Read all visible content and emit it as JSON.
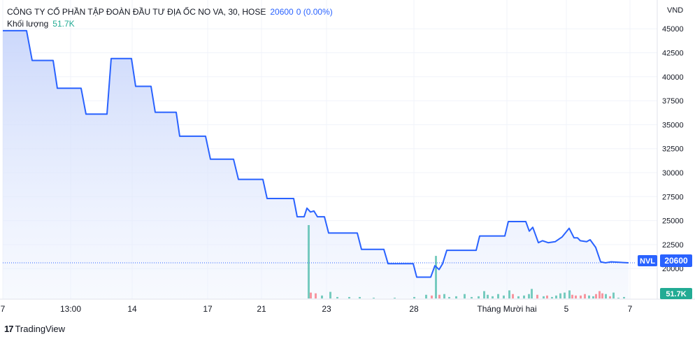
{
  "header": {
    "title": "CÔNG TY CỔ PHẦN TẬP ĐOÀN ĐẦU TƯ ĐỊA ỐC NO VA, 30, HOSE",
    "price": "20600",
    "change": "0 (0.00%)",
    "volume_label": "Khối lượng",
    "volume_value": "51.7K"
  },
  "axis": {
    "unit_label": "VND",
    "price_ticks": [
      "45000",
      "42500",
      "40000",
      "37500",
      "35000",
      "32500",
      "30000",
      "27500",
      "25000",
      "22500",
      "20000"
    ],
    "time_ticks": [
      "7",
      "13:00",
      "14",
      "17",
      "21",
      "23",
      "28",
      "Tháng Mười hai",
      "5",
      "7"
    ]
  },
  "badges": {
    "symbol": "NVL",
    "price": "20600",
    "volume": "51.7K"
  },
  "brand": {
    "logo": "17",
    "name": "TradingView"
  },
  "colors": {
    "line": "#2962ff",
    "area_top": "#c9d6fb",
    "up_volume": "#22ab94",
    "down_volume": "#f7525f"
  },
  "chart_data": {
    "type": "area",
    "ylim": [
      17500,
      46500
    ],
    "series": [
      {
        "values": [
          {
            "x": 0,
            "y": 44800
          },
          {
            "x": 34,
            "y": 44800
          },
          {
            "x": 42,
            "y": 41700
          },
          {
            "x": 72,
            "y": 41700
          },
          {
            "x": 78,
            "y": 38800
          },
          {
            "x": 112,
            "y": 38800
          },
          {
            "x": 119,
            "y": 36100
          },
          {
            "x": 149,
            "y": 36100
          },
          {
            "x": 155,
            "y": 41900
          },
          {
            "x": 184,
            "y": 41900
          },
          {
            "x": 190,
            "y": 39000
          },
          {
            "x": 212,
            "y": 39000
          },
          {
            "x": 218,
            "y": 36300
          },
          {
            "x": 248,
            "y": 36300
          },
          {
            "x": 253,
            "y": 33800
          },
          {
            "x": 290,
            "y": 33800
          },
          {
            "x": 297,
            "y": 31400
          },
          {
            "x": 330,
            "y": 31400
          },
          {
            "x": 337,
            "y": 29300
          },
          {
            "x": 372,
            "y": 29300
          },
          {
            "x": 378,
            "y": 27300
          },
          {
            "x": 416,
            "y": 27300
          },
          {
            "x": 421,
            "y": 25400
          },
          {
            "x": 431,
            "y": 25400
          },
          {
            "x": 435,
            "y": 26300
          },
          {
            "x": 440,
            "y": 25900
          },
          {
            "x": 445,
            "y": 26000
          },
          {
            "x": 450,
            "y": 25400
          },
          {
            "x": 460,
            "y": 25400
          },
          {
            "x": 466,
            "y": 23700
          },
          {
            "x": 507,
            "y": 23700
          },
          {
            "x": 513,
            "y": 22000
          },
          {
            "x": 545,
            "y": 22000
          },
          {
            "x": 551,
            "y": 20500
          },
          {
            "x": 587,
            "y": 20500
          },
          {
            "x": 592,
            "y": 19100
          },
          {
            "x": 612,
            "y": 19100
          },
          {
            "x": 618,
            "y": 20300
          },
          {
            "x": 624,
            "y": 19900
          },
          {
            "x": 629,
            "y": 20500
          },
          {
            "x": 635,
            "y": 21900
          },
          {
            "x": 677,
            "y": 21900
          },
          {
            "x": 682,
            "y": 23400
          },
          {
            "x": 718,
            "y": 23400
          },
          {
            "x": 723,
            "y": 24900
          },
          {
            "x": 748,
            "y": 24900
          },
          {
            "x": 753,
            "y": 23900
          },
          {
            "x": 758,
            "y": 24300
          },
          {
            "x": 766,
            "y": 22700
          },
          {
            "x": 772,
            "y": 22900
          },
          {
            "x": 780,
            "y": 22700
          },
          {
            "x": 790,
            "y": 22800
          },
          {
            "x": 800,
            "y": 23300
          },
          {
            "x": 810,
            "y": 24200
          },
          {
            "x": 817,
            "y": 23200
          },
          {
            "x": 822,
            "y": 23200
          },
          {
            "x": 826,
            "y": 22900
          },
          {
            "x": 835,
            "y": 22800
          },
          {
            "x": 840,
            "y": 23000
          },
          {
            "x": 848,
            "y": 22200
          },
          {
            "x": 855,
            "y": 20700
          },
          {
            "x": 862,
            "y": 20600
          },
          {
            "x": 870,
            "y": 20700
          },
          {
            "x": 895,
            "y": 20600
          }
        ]
      }
    ],
    "volume": [
      {
        "x": 437,
        "v": 100,
        "dir": "up"
      },
      {
        "x": 440,
        "v": 8,
        "dir": "down"
      },
      {
        "x": 447,
        "v": 7,
        "dir": "down"
      },
      {
        "x": 456,
        "v": 4,
        "dir": "up"
      },
      {
        "x": 468,
        "v": 9,
        "dir": "up"
      },
      {
        "x": 478,
        "v": 2,
        "dir": "up"
      },
      {
        "x": 495,
        "v": 2,
        "dir": "up"
      },
      {
        "x": 510,
        "v": 2,
        "dir": "up"
      },
      {
        "x": 530,
        "v": 1,
        "dir": "up"
      },
      {
        "x": 560,
        "v": 1,
        "dir": "up"
      },
      {
        "x": 588,
        "v": 2,
        "dir": "up"
      },
      {
        "x": 605,
        "v": 5,
        "dir": "up"
      },
      {
        "x": 613,
        "v": 4,
        "dir": "down"
      },
      {
        "x": 619,
        "v": 58,
        "dir": "up"
      },
      {
        "x": 624,
        "v": 5,
        "dir": "down"
      },
      {
        "x": 631,
        "v": 6,
        "dir": "up"
      },
      {
        "x": 638,
        "v": 2,
        "dir": "up"
      },
      {
        "x": 648,
        "v": 3,
        "dir": "up"
      },
      {
        "x": 660,
        "v": 6,
        "dir": "up"
      },
      {
        "x": 670,
        "v": 2,
        "dir": "up"
      },
      {
        "x": 680,
        "v": 3,
        "dir": "up"
      },
      {
        "x": 688,
        "v": 10,
        "dir": "up"
      },
      {
        "x": 693,
        "v": 5,
        "dir": "up"
      },
      {
        "x": 700,
        "v": 3,
        "dir": "up"
      },
      {
        "x": 708,
        "v": 6,
        "dir": "up"
      },
      {
        "x": 716,
        "v": 4,
        "dir": "up"
      },
      {
        "x": 724,
        "v": 11,
        "dir": "up"
      },
      {
        "x": 729,
        "v": 6,
        "dir": "down"
      },
      {
        "x": 737,
        "v": 3,
        "dir": "up"
      },
      {
        "x": 745,
        "v": 4,
        "dir": "up"
      },
      {
        "x": 752,
        "v": 6,
        "dir": "up"
      },
      {
        "x": 756,
        "v": 13,
        "dir": "up"
      },
      {
        "x": 764,
        "v": 5,
        "dir": "down"
      },
      {
        "x": 773,
        "v": 3,
        "dir": "up"
      },
      {
        "x": 778,
        "v": 4,
        "dir": "down"
      },
      {
        "x": 785,
        "v": 2,
        "dir": "up"
      },
      {
        "x": 791,
        "v": 4,
        "dir": "up"
      },
      {
        "x": 797,
        "v": 7,
        "dir": "up"
      },
      {
        "x": 803,
        "v": 8,
        "dir": "up"
      },
      {
        "x": 810,
        "v": 11,
        "dir": "up"
      },
      {
        "x": 814,
        "v": 5,
        "dir": "down"
      },
      {
        "x": 819,
        "v": 4,
        "dir": "down"
      },
      {
        "x": 826,
        "v": 4,
        "dir": "down"
      },
      {
        "x": 832,
        "v": 6,
        "dir": "down"
      },
      {
        "x": 838,
        "v": 4,
        "dir": "up"
      },
      {
        "x": 844,
        "v": 3,
        "dir": "up"
      },
      {
        "x": 848,
        "v": 6,
        "dir": "down"
      },
      {
        "x": 853,
        "v": 10,
        "dir": "down"
      },
      {
        "x": 857,
        "v": 7,
        "dir": "down"
      },
      {
        "x": 862,
        "v": 6,
        "dir": "up"
      },
      {
        "x": 868,
        "v": 3,
        "dir": "down"
      },
      {
        "x": 873,
        "v": 8,
        "dir": "up"
      },
      {
        "x": 880,
        "v": 1,
        "dir": "up"
      },
      {
        "x": 888,
        "v": 2,
        "dir": "up"
      }
    ]
  }
}
